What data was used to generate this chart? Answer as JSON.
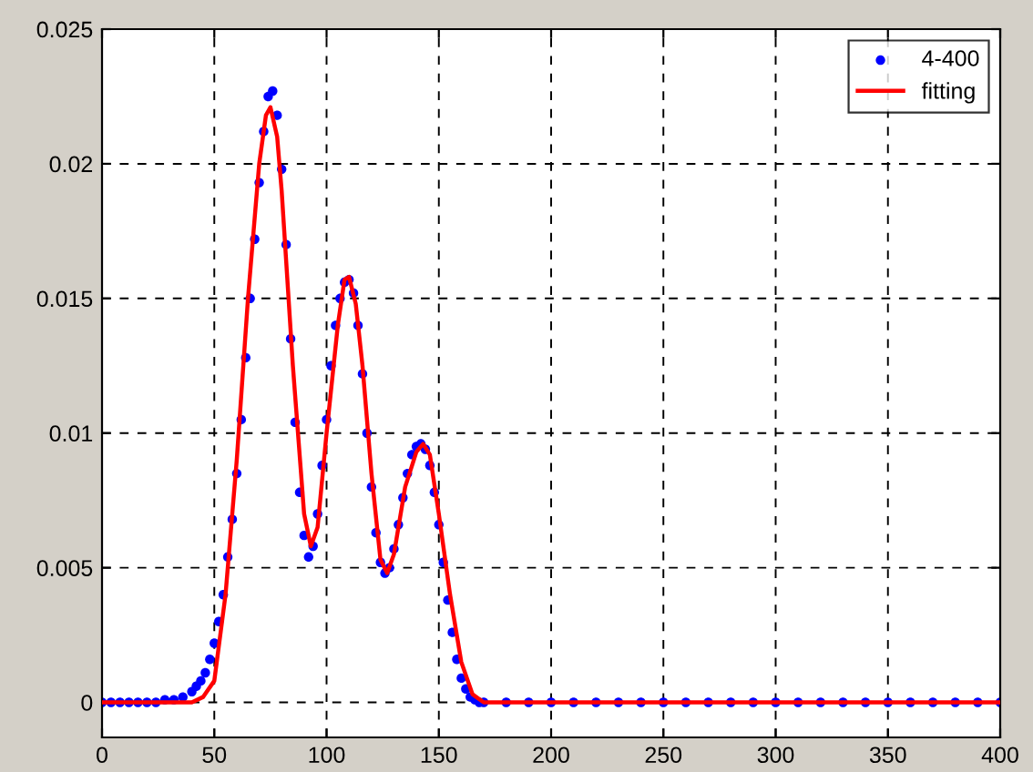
{
  "chart_data": {
    "type": "scatter",
    "xlim": [
      0,
      400
    ],
    "ylim": [
      -0.0013,
      0.025
    ],
    "xticks": [
      0,
      50,
      100,
      150,
      200,
      250,
      300,
      350,
      400
    ],
    "yticks": [
      {
        "value": 0,
        "label": "0"
      },
      {
        "value": 0.005,
        "label": "0.005"
      },
      {
        "value": 0.01,
        "label": "0.01"
      },
      {
        "value": 0.015,
        "label": "0.015"
      },
      {
        "value": 0.02,
        "label": "0.02"
      },
      {
        "value": 0.025,
        "label": "0.025"
      }
    ],
    "grid": true,
    "legend": "top right",
    "series": [
      {
        "name": "4-400",
        "color": "#0000ff",
        "marker": "circle",
        "x": [
          0,
          4,
          8,
          12,
          16,
          20,
          24,
          28,
          32,
          36,
          40,
          42,
          44,
          46,
          48,
          50,
          52,
          54,
          56,
          58,
          60,
          62,
          64,
          66,
          68,
          70,
          72,
          74,
          76,
          78,
          80,
          82,
          84,
          86,
          88,
          90,
          92,
          94,
          96,
          98,
          100,
          102,
          104,
          106,
          108,
          110,
          112,
          114,
          116,
          118,
          120,
          122,
          124,
          126,
          128,
          130,
          132,
          134,
          136,
          138,
          140,
          142,
          144,
          146,
          148,
          150,
          152,
          154,
          156,
          158,
          160,
          162,
          164,
          166,
          168,
          170,
          180,
          190,
          200,
          210,
          220,
          230,
          240,
          250,
          260,
          270,
          280,
          290,
          300,
          310,
          320,
          330,
          340,
          350,
          360,
          370,
          380,
          390,
          400
        ],
        "values": [
          0,
          0,
          0,
          0,
          0,
          0,
          0,
          0.0001,
          0.0001,
          0.0002,
          0.0004,
          0.0006,
          0.0008,
          0.0011,
          0.0016,
          0.0022,
          0.003,
          0.004,
          0.0054,
          0.0068,
          0.0085,
          0.0105,
          0.0128,
          0.015,
          0.0172,
          0.0193,
          0.0212,
          0.0225,
          0.0227,
          0.0218,
          0.0198,
          0.017,
          0.0135,
          0.0104,
          0.0078,
          0.0062,
          0.0054,
          0.0058,
          0.007,
          0.0088,
          0.0105,
          0.0125,
          0.014,
          0.015,
          0.0156,
          0.0157,
          0.0152,
          0.014,
          0.0122,
          0.01,
          0.008,
          0.0063,
          0.0052,
          0.0048,
          0.005,
          0.0057,
          0.0066,
          0.0076,
          0.0085,
          0.0092,
          0.0095,
          0.0096,
          0.0094,
          0.0088,
          0.0078,
          0.0066,
          0.0052,
          0.0038,
          0.0026,
          0.0016,
          0.0009,
          0.0005,
          0.0002,
          0.0001,
          0,
          0,
          0,
          0,
          0,
          0,
          0,
          0,
          0,
          0,
          0,
          0,
          0,
          0,
          0,
          0,
          0,
          0,
          0,
          0,
          0,
          0,
          0,
          0,
          0
        ]
      },
      {
        "name": "fitting",
        "color": "#ff0000",
        "type": "line",
        "line_style": "solid",
        "x": [
          0,
          40,
          45,
          50,
          55,
          60,
          65,
          70,
          73,
          75,
          78,
          80,
          85,
          90,
          93,
          96,
          100,
          105,
          108,
          110,
          113,
          116,
          120,
          124,
          127,
          130,
          135,
          140,
          143,
          146,
          150,
          155,
          160,
          165,
          170,
          400
        ],
        "values": [
          0,
          0,
          0.0002,
          0.0008,
          0.004,
          0.009,
          0.015,
          0.02,
          0.0218,
          0.0221,
          0.021,
          0.019,
          0.0125,
          0.007,
          0.0058,
          0.0065,
          0.01,
          0.014,
          0.0157,
          0.0158,
          0.0148,
          0.0125,
          0.0085,
          0.0053,
          0.0048,
          0.0055,
          0.008,
          0.0093,
          0.0096,
          0.0092,
          0.007,
          0.004,
          0.0015,
          0.0003,
          0,
          0
        ]
      }
    ]
  }
}
